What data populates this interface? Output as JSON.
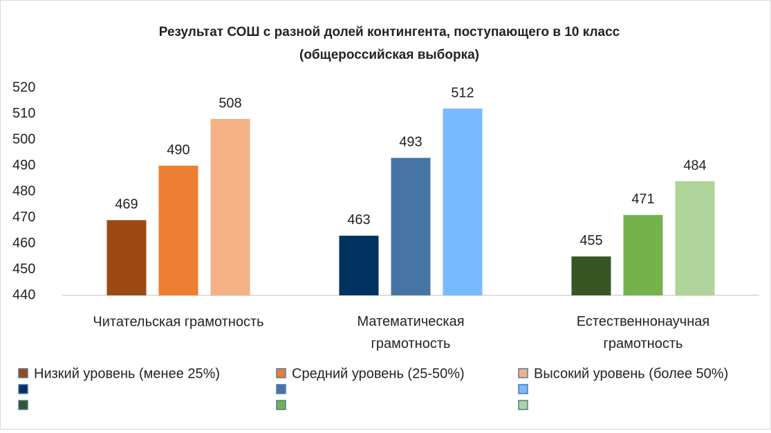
{
  "chart_data": {
    "type": "bar",
    "title": [
      "Результат СОШ с разной долей контингента, поступающего в 10 класс",
      "(общероссийская выборка)"
    ],
    "categories": [
      "Читательская грамотность",
      "Математическая грамотность",
      "Естественнонаучная грамотность"
    ],
    "series": [
      {
        "name": "Низкий уровень (менее 25%)",
        "colors": [
          "#9c4a11",
          "#00325f",
          "#375623"
        ],
        "values": [
          469,
          463,
          455
        ]
      },
      {
        "name": "Средний уровень (25-50%)",
        "colors": [
          "#ed7d31",
          "#4674a5",
          "#74b24c"
        ],
        "values": [
          490,
          493,
          471
        ]
      },
      {
        "name": "Высокий уровень (более 50%)",
        "colors": [
          "#f4b183",
          "#78baff",
          "#afd49a"
        ],
        "values": [
          508,
          512,
          484
        ]
      }
    ],
    "ylim": [
      440,
      520
    ],
    "yticks": [
      440,
      450,
      460,
      470,
      480,
      490,
      500,
      510,
      520
    ],
    "grid": false
  }
}
